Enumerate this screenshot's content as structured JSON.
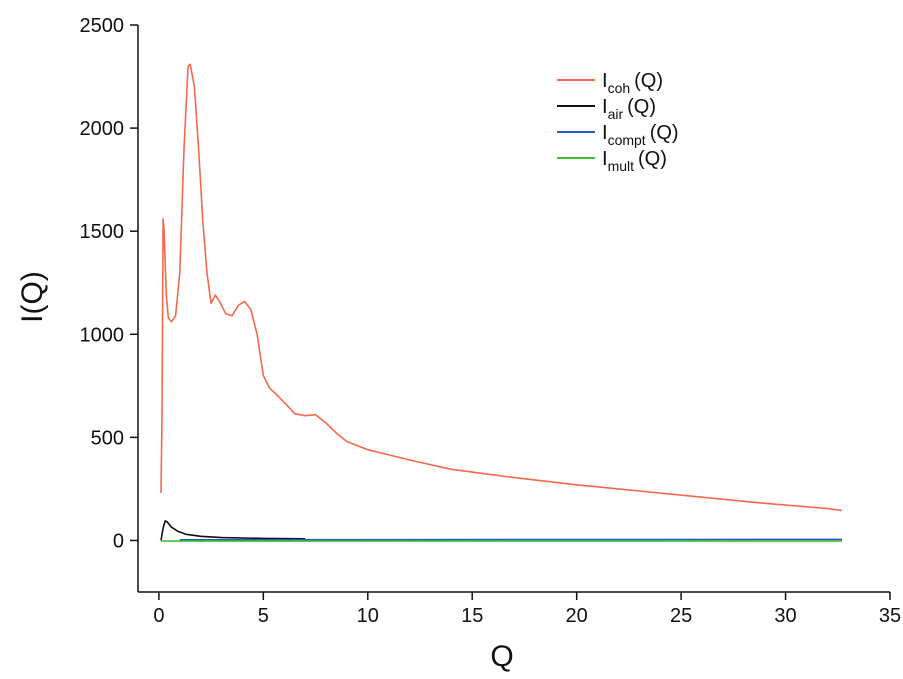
{
  "chart_data": {
    "type": "line",
    "xlabel": "Q",
    "ylabel": "I(Q)",
    "xlim": [
      -1,
      35
    ],
    "ylim": [
      -250,
      2500
    ],
    "x_ticks": [
      0,
      5,
      10,
      15,
      20,
      25,
      30,
      35
    ],
    "y_ticks": [
      0,
      500,
      1000,
      1500,
      2000,
      2500
    ],
    "grid": false,
    "legend_position": "top-right",
    "series": [
      {
        "name": "I",
        "subscript": "coh",
        "suffix": "(Q)",
        "color": "#f4694d",
        "points": [
          [
            0.1,
            230
          ],
          [
            0.15,
            600
          ],
          [
            0.2,
            1560
          ],
          [
            0.25,
            1500
          ],
          [
            0.35,
            1200
          ],
          [
            0.45,
            1080
          ],
          [
            0.6,
            1060
          ],
          [
            0.8,
            1090
          ],
          [
            1.0,
            1300
          ],
          [
            1.2,
            1900
          ],
          [
            1.4,
            2300
          ],
          [
            1.5,
            2310
          ],
          [
            1.7,
            2200
          ],
          [
            1.9,
            1900
          ],
          [
            2.1,
            1550
          ],
          [
            2.3,
            1300
          ],
          [
            2.5,
            1150
          ],
          [
            2.7,
            1190
          ],
          [
            2.9,
            1160
          ],
          [
            3.2,
            1100
          ],
          [
            3.5,
            1090
          ],
          [
            3.8,
            1140
          ],
          [
            4.1,
            1160
          ],
          [
            4.4,
            1120
          ],
          [
            4.7,
            1000
          ],
          [
            5.0,
            800
          ],
          [
            5.3,
            740
          ],
          [
            5.7,
            700
          ],
          [
            6.1,
            660
          ],
          [
            6.5,
            615
          ],
          [
            7.0,
            605
          ],
          [
            7.5,
            610
          ],
          [
            8.0,
            570
          ],
          [
            8.5,
            520
          ],
          [
            9.0,
            480
          ],
          [
            9.5,
            460
          ],
          [
            10.0,
            440
          ],
          [
            12.0,
            390
          ],
          [
            14.0,
            345
          ],
          [
            17.0,
            305
          ],
          [
            20.0,
            270
          ],
          [
            23.0,
            240
          ],
          [
            26.0,
            210
          ],
          [
            29.0,
            180
          ],
          [
            32.0,
            155
          ],
          [
            32.7,
            145
          ]
        ]
      },
      {
        "name": "I",
        "subscript": "air",
        "suffix": "(Q)",
        "color": "#111111",
        "points": [
          [
            0.1,
            0
          ],
          [
            0.2,
            60
          ],
          [
            0.3,
            95
          ],
          [
            0.4,
            90
          ],
          [
            0.6,
            65
          ],
          [
            0.9,
            45
          ],
          [
            1.3,
            30
          ],
          [
            2.0,
            20
          ],
          [
            3.0,
            14
          ],
          [
            5.0,
            10
          ],
          [
            7.0,
            8
          ]
        ]
      },
      {
        "name": "I",
        "subscript": "compt",
        "suffix": "(Q)",
        "color": "#2a56c6",
        "points": [
          [
            1.0,
            3
          ],
          [
            32.7,
            5
          ]
        ]
      },
      {
        "name": "I",
        "subscript": "mult",
        "suffix": "(Q)",
        "color": "#3cc43c",
        "points": [
          [
            0.1,
            -3
          ],
          [
            32.7,
            -3
          ]
        ]
      }
    ]
  }
}
